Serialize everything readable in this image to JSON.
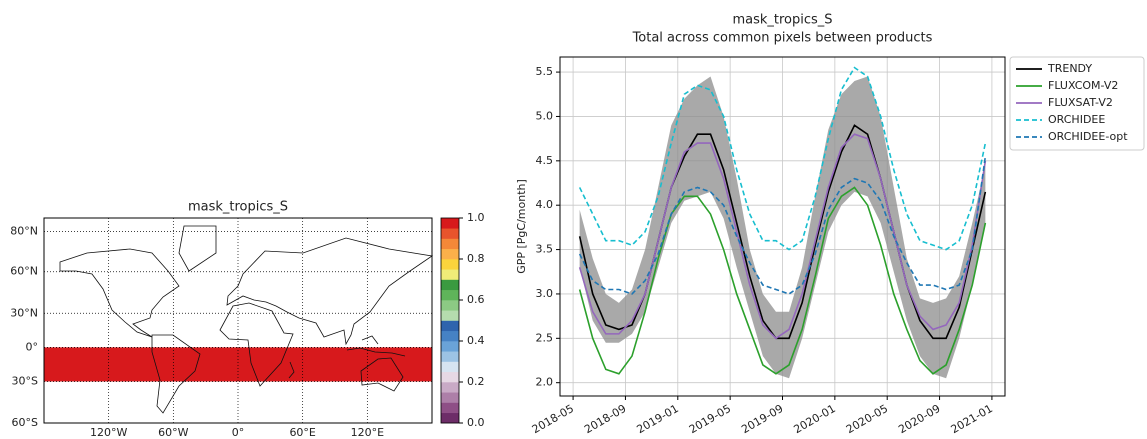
{
  "chart_data": [
    {
      "type": "map",
      "title": "mask_tropics_S",
      "projection": "miller",
      "xlim": [
        -180,
        180
      ],
      "ylim": [
        -60,
        85
      ],
      "xticks": [
        {
          "value": -120,
          "label": "120°W"
        },
        {
          "value": -60,
          "label": "60°W"
        },
        {
          "value": 0,
          "label": "0°"
        },
        {
          "value": 60,
          "label": "60°E"
        },
        {
          "value": 120,
          "label": "120°E"
        }
      ],
      "yticks": [
        {
          "value": 80,
          "label": "80°N"
        },
        {
          "value": 60,
          "label": "60°N"
        },
        {
          "value": 30,
          "label": "30°N"
        },
        {
          "value": 0,
          "label": "0°"
        },
        {
          "value": -30,
          "label": "30°S"
        },
        {
          "value": -60,
          "label": "60°S"
        }
      ],
      "grid": true,
      "mask": {
        "lat": [
          -30,
          0
        ],
        "value": 1
      },
      "colorbar": {
        "lim": [
          0,
          1
        ],
        "ticks": [
          {
            "value": 0,
            "label": "0.0"
          },
          0.2,
          0.4,
          0.6,
          0.8,
          {
            "value": 1,
            "label": "1.0"
          }
        ],
        "colors": [
          "#6d2d68",
          "#8e4f86",
          "#ad7fa8",
          "#c9aac6",
          "#e6d8e4",
          "#d6e4f1",
          "#9cc3e4",
          "#6aa3d8",
          "#4682c4",
          "#2f64ad",
          "#b5dcae",
          "#8cca84",
          "#5fb45a",
          "#3a9a40",
          "#f0ec78",
          "#fbd43c",
          "#fbb04a",
          "#f48838",
          "#e8542c",
          "#d7191c"
        ]
      }
    },
    {
      "type": "line",
      "title": "mask_tropics_S",
      "subtitle": "Total across common pixels between products",
      "ylabel": "GPP [PgC/month]",
      "x": [
        "2018-05",
        "2018-06",
        "2018-07",
        "2018-08",
        "2018-09",
        "2018-10",
        "2018-11",
        "2018-12",
        "2019-01",
        "2019-02",
        "2019-03",
        "2019-04",
        "2019-05",
        "2019-06",
        "2019-07",
        "2019-08",
        "2019-09",
        "2019-10",
        "2019-11",
        "2019-12",
        "2020-01",
        "2020-02",
        "2020-03",
        "2020-04",
        "2020-05",
        "2020-06",
        "2020-07",
        "2020-08",
        "2020-09",
        "2020-10",
        "2020-11",
        "2020-12"
      ],
      "xlim": [
        "2018-04",
        "2021-02"
      ],
      "xticks": [
        "2018-05",
        "2018-09",
        "2019-01",
        "2019-05",
        "2019-09",
        "2020-01",
        "2020-05",
        "2020-09",
        "2021-01"
      ],
      "ylim": [
        1.85,
        5.67
      ],
      "yticks": [
        {
          "value": 2,
          "label": "2.0"
        },
        2.5,
        {
          "value": 3,
          "label": "3.0"
        },
        3.5,
        {
          "value": 4,
          "label": "4.0"
        },
        4.5,
        {
          "value": 5,
          "label": "5.0"
        },
        5.5
      ],
      "grid": true,
      "legend": "outside upper right",
      "series": [
        {
          "name": "TRENDY",
          "color": "#000000",
          "dashed": false,
          "values": [
            3.65,
            3.0,
            2.65,
            2.6,
            2.65,
            3.0,
            3.6,
            4.2,
            4.55,
            4.8,
            4.8,
            4.4,
            3.8,
            3.2,
            2.7,
            2.5,
            2.5,
            2.9,
            3.55,
            4.15,
            4.6,
            4.9,
            4.8,
            4.3,
            3.7,
            3.1,
            2.7,
            2.5,
            2.5,
            2.85,
            3.5,
            4.15
          ],
          "band": {
            "color": "#8c8c8c",
            "lower": [
              3.3,
              2.7,
              2.45,
              2.45,
              2.55,
              2.8,
              3.3,
              3.8,
              4.05,
              4.1,
              4.15,
              3.85,
              3.3,
              2.8,
              2.3,
              2.1,
              2.05,
              2.5,
              3.1,
              3.7,
              4.0,
              4.15,
              4.1,
              3.8,
              3.25,
              2.7,
              2.3,
              2.1,
              2.05,
              2.5,
              3.1,
              3.8
            ],
            "upper": [
              3.95,
              3.4,
              3.0,
              2.9,
              3.05,
              3.5,
              4.2,
              4.9,
              5.2,
              5.35,
              5.45,
              5.0,
              4.3,
              3.5,
              3.0,
              2.8,
              2.8,
              3.3,
              4.1,
              4.85,
              5.25,
              5.4,
              5.45,
              5.0,
              4.2,
              3.4,
              2.95,
              2.9,
              2.95,
              3.2,
              3.8,
              4.45
            ]
          }
        },
        {
          "name": "FLUXCOM-V2",
          "color": "#2ca02c",
          "dashed": false,
          "values": [
            3.05,
            2.5,
            2.15,
            2.1,
            2.3,
            2.8,
            3.4,
            3.9,
            4.1,
            4.1,
            3.9,
            3.5,
            3.0,
            2.6,
            2.2,
            2.1,
            2.2,
            2.6,
            3.2,
            3.85,
            4.1,
            4.2,
            4.0,
            3.55,
            3.0,
            2.6,
            2.25,
            2.1,
            2.2,
            2.6,
            3.1,
            3.8
          ]
        },
        {
          "name": "FLUXSAT-V2",
          "color": "#9467bd",
          "dashed": false,
          "values": [
            3.3,
            2.8,
            2.55,
            2.55,
            2.7,
            3.0,
            3.6,
            4.2,
            4.6,
            4.7,
            4.7,
            4.3,
            3.7,
            3.1,
            2.65,
            2.5,
            2.6,
            3.0,
            3.6,
            4.2,
            4.65,
            4.8,
            4.75,
            4.3,
            3.7,
            3.1,
            2.75,
            2.6,
            2.65,
            2.9,
            3.55,
            4.5
          ]
        },
        {
          "name": "ORCHIDEE",
          "color": "#17becf",
          "dashed": true,
          "values": [
            4.2,
            3.9,
            3.6,
            3.6,
            3.55,
            3.7,
            4.1,
            4.7,
            5.25,
            5.35,
            5.3,
            5.0,
            4.4,
            3.9,
            3.6,
            3.6,
            3.5,
            3.6,
            4.1,
            4.75,
            5.3,
            5.55,
            5.45,
            5.0,
            4.4,
            3.9,
            3.6,
            3.55,
            3.5,
            3.6,
            4.0,
            4.7
          ]
        },
        {
          "name": "ORCHIDEE-opt",
          "color": "#1f77b4",
          "dashed": true,
          "values": [
            3.45,
            3.15,
            3.05,
            3.05,
            3.0,
            3.15,
            3.45,
            3.9,
            4.15,
            4.2,
            4.15,
            4.0,
            3.65,
            3.35,
            3.1,
            3.05,
            3.0,
            3.1,
            3.45,
            3.95,
            4.2,
            4.3,
            4.25,
            4.05,
            3.65,
            3.35,
            3.1,
            3.1,
            3.05,
            3.1,
            3.5,
            4.55
          ]
        }
      ]
    }
  ]
}
